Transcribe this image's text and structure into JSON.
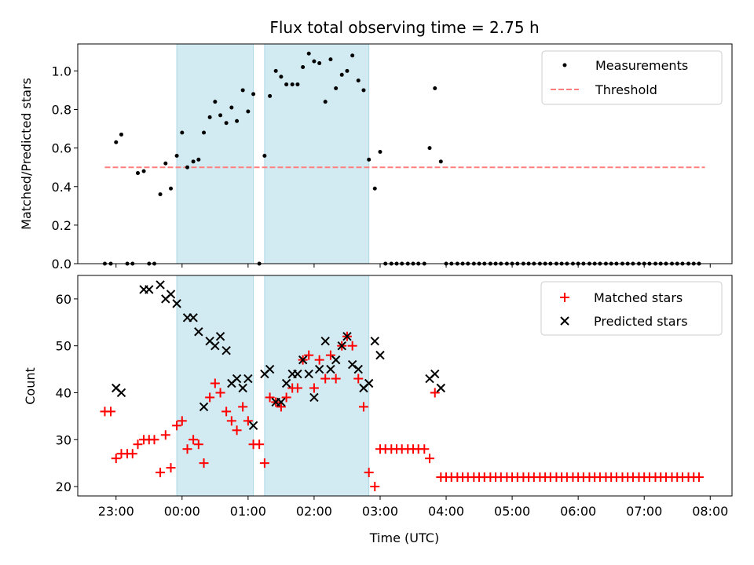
{
  "chart_data": [
    {
      "type": "scatter",
      "title": "Flux total observing time = 2.75 h",
      "ylabel": "Matched/Predicted stars",
      "xlabel": "",
      "ylim": [
        0,
        1.14
      ],
      "yticks": [
        0.0,
        0.2,
        0.4,
        0.6,
        0.8,
        1.0
      ],
      "ytick_labels": [
        "0.0",
        "0.2",
        "0.4",
        "0.6",
        "0.8",
        "1.0"
      ],
      "xlim_hours": [
        -1.58,
        8.33
      ],
      "grid": false,
      "legend_position": "top-right",
      "legend": [
        "Measurements",
        "Threshold"
      ],
      "shaded_hour_ranges": [
        [
          -0.08,
          1.08
        ],
        [
          1.25,
          2.83
        ]
      ],
      "shade_color": "#add8e6",
      "threshold": {
        "name": "Threshold",
        "y": 0.5,
        "x_hours": [
          -1.17,
          7.92
        ],
        "color": "#ff7f7f"
      },
      "series": [
        {
          "name": "Measurements",
          "color": "#000000",
          "x_hours": [
            -1.17,
            -1.08,
            -1.0,
            -0.92,
            -0.83,
            -0.75,
            -0.67,
            -0.58,
            -0.5,
            -0.42,
            -0.33,
            -0.25,
            -0.17,
            -0.08,
            0.0,
            0.08,
            0.17,
            0.25,
            0.33,
            0.42,
            0.5,
            0.58,
            0.67,
            0.75,
            0.83,
            0.92,
            1.0,
            1.08,
            1.17,
            1.25,
            1.33,
            1.42,
            1.5,
            1.58,
            1.67,
            1.75,
            1.83,
            1.92,
            2.0,
            2.08,
            2.17,
            2.25,
            2.33,
            2.42,
            2.5,
            2.58,
            2.67,
            2.75,
            2.83,
            2.92,
            3.0,
            3.08,
            3.17,
            3.25,
            3.33,
            3.42,
            3.5,
            3.58,
            3.67,
            3.75,
            3.83,
            3.92,
            4.0,
            4.08,
            4.17,
            4.25,
            4.33,
            4.42,
            4.5,
            4.58,
            4.67,
            4.75,
            4.83,
            4.92,
            5.0,
            5.08,
            5.17,
            5.25,
            5.33,
            5.42,
            5.5,
            5.58,
            5.67,
            5.75,
            5.83,
            5.92,
            6.0,
            6.08,
            6.17,
            6.25,
            6.33,
            6.42,
            6.5,
            6.58,
            6.67,
            6.75,
            6.83,
            6.92,
            7.0,
            7.08,
            7.17,
            7.25,
            7.33,
            7.42,
            7.5,
            7.58,
            7.67,
            7.75,
            7.83
          ],
          "values": [
            0,
            0,
            0.63,
            0.67,
            0,
            0,
            0.47,
            0.48,
            0,
            0,
            0.36,
            0.52,
            0.39,
            0.56,
            0.68,
            0.5,
            0.53,
            0.54,
            0.68,
            0.76,
            0.84,
            0.77,
            0.73,
            0.81,
            0.74,
            0.9,
            0.79,
            0.88,
            0,
            0.56,
            0.87,
            1.0,
            0.97,
            0.93,
            0.93,
            0.93,
            1.02,
            1.09,
            1.05,
            1.04,
            0.84,
            1.06,
            0.91,
            0.98,
            1.0,
            1.08,
            0.95,
            0.9,
            0.54,
            0.39,
            0.58,
            0,
            0,
            0,
            0,
            0,
            0,
            0,
            0,
            0.6,
            0.91,
            0.53,
            0,
            0,
            0,
            0,
            0,
            0,
            0,
            0,
            0,
            0,
            0,
            0,
            0,
            0,
            0,
            0,
            0,
            0,
            0,
            0,
            0,
            0,
            0,
            0,
            0,
            0,
            0,
            0,
            0,
            0,
            0,
            0,
            0,
            0,
            0,
            0,
            0,
            0,
            0,
            0,
            0,
            0,
            0,
            0,
            0,
            0,
            0
          ]
        }
      ]
    },
    {
      "type": "scatter",
      "title": "",
      "ylabel": "Count",
      "xlabel": "Time (UTC)",
      "ylim": [
        18,
        65
      ],
      "yticks": [
        20,
        30,
        40,
        50,
        60
      ],
      "ytick_labels": [
        "20",
        "30",
        "40",
        "50",
        "60"
      ],
      "xlim_hours": [
        -1.58,
        8.33
      ],
      "xticks_hours": [
        -1,
        0,
        1,
        2,
        3,
        4,
        5,
        6,
        7,
        8
      ],
      "xtick_labels": [
        "23:00",
        "00:00",
        "01:00",
        "02:00",
        "03:00",
        "04:00",
        "05:00",
        "06:00",
        "07:00",
        "08:00"
      ],
      "grid": false,
      "legend_position": "top-right",
      "legend": [
        "Matched stars",
        "Predicted stars"
      ],
      "shaded_hour_ranges": [
        [
          -0.08,
          1.08
        ],
        [
          1.25,
          2.83
        ]
      ],
      "shade_color": "#add8e6",
      "series": [
        {
          "name": "Matched stars",
          "marker": "plus",
          "color": "#ff0000",
          "x_hours": [
            -1.17,
            -1.08,
            -1.0,
            -0.92,
            -0.83,
            -0.75,
            -0.67,
            -0.58,
            -0.5,
            -0.42,
            -0.33,
            -0.25,
            -0.17,
            -0.08,
            0.0,
            0.08,
            0.17,
            0.25,
            0.33,
            0.42,
            0.5,
            0.58,
            0.67,
            0.75,
            0.83,
            0.92,
            1.0,
            1.08,
            1.17,
            1.25,
            1.33,
            1.42,
            1.5,
            1.58,
            1.67,
            1.75,
            1.83,
            1.92,
            2.0,
            2.08,
            2.17,
            2.25,
            2.33,
            2.42,
            2.5,
            2.58,
            2.67,
            2.75,
            2.83,
            2.92,
            3.0,
            3.08,
            3.17,
            3.25,
            3.33,
            3.42,
            3.5,
            3.58,
            3.67,
            3.75,
            3.83,
            3.92,
            4.0,
            4.08,
            4.17,
            4.25,
            4.33,
            4.42,
            4.5,
            4.58,
            4.67,
            4.75,
            4.83,
            4.92,
            5.0,
            5.08,
            5.17,
            5.25,
            5.33,
            5.42,
            5.5,
            5.58,
            5.67,
            5.75,
            5.83,
            5.92,
            6.0,
            6.08,
            6.17,
            6.25,
            6.33,
            6.42,
            6.5,
            6.58,
            6.67,
            6.75,
            6.83,
            6.92,
            7.0,
            7.08,
            7.17,
            7.25,
            7.33,
            7.42,
            7.5,
            7.58,
            7.67,
            7.75,
            7.83
          ],
          "values": [
            36,
            36,
            26,
            27,
            27,
            27,
            29,
            30,
            30,
            30,
            23,
            31,
            24,
            33,
            34,
            28,
            30,
            29,
            25,
            39,
            42,
            40,
            36,
            34,
            32,
            37,
            34,
            29,
            29,
            25,
            39,
            38,
            37,
            39,
            41,
            41,
            47,
            48,
            41,
            47,
            43,
            48,
            43,
            50,
            52,
            50,
            43,
            37,
            23,
            20,
            28,
            28,
            28,
            28,
            28,
            28,
            28,
            28,
            28,
            26,
            40,
            22,
            22,
            22,
            22,
            22,
            22,
            22,
            22,
            22,
            22,
            22,
            22,
            22,
            22,
            22,
            22,
            22,
            22,
            22,
            22,
            22,
            22,
            22,
            22,
            22,
            22,
            22,
            22,
            22,
            22,
            22,
            22,
            22,
            22,
            22,
            22,
            22,
            22,
            22,
            22,
            22,
            22,
            22,
            22,
            22,
            22,
            22,
            22
          ]
        },
        {
          "name": "Predicted stars",
          "marker": "x",
          "color": "#000000",
          "x_hours": [
            -1.0,
            -0.92,
            -0.58,
            -0.5,
            -0.33,
            -0.25,
            -0.17,
            -0.08,
            0.08,
            0.17,
            0.25,
            0.33,
            0.42,
            0.5,
            0.58,
            0.67,
            0.75,
            0.83,
            0.92,
            1.0,
            1.08,
            1.25,
            1.33,
            1.42,
            1.5,
            1.58,
            1.67,
            1.75,
            1.83,
            1.92,
            2.0,
            2.08,
            2.17,
            2.25,
            2.33,
            2.42,
            2.5,
            2.58,
            2.67,
            2.75,
            2.83,
            2.92,
            3.0,
            3.75,
            3.83,
            3.92
          ],
          "values": [
            41,
            40,
            62,
            62,
            63,
            60,
            61,
            59,
            56,
            56,
            53,
            37,
            51,
            50,
            52,
            49,
            42,
            43,
            41,
            43,
            33,
            44,
            45,
            38,
            38,
            42,
            44,
            44,
            47,
            44,
            39,
            45,
            51,
            45,
            47,
            50,
            52,
            46,
            45,
            41,
            42,
            51,
            48,
            43,
            44,
            41
          ]
        }
      ]
    }
  ]
}
